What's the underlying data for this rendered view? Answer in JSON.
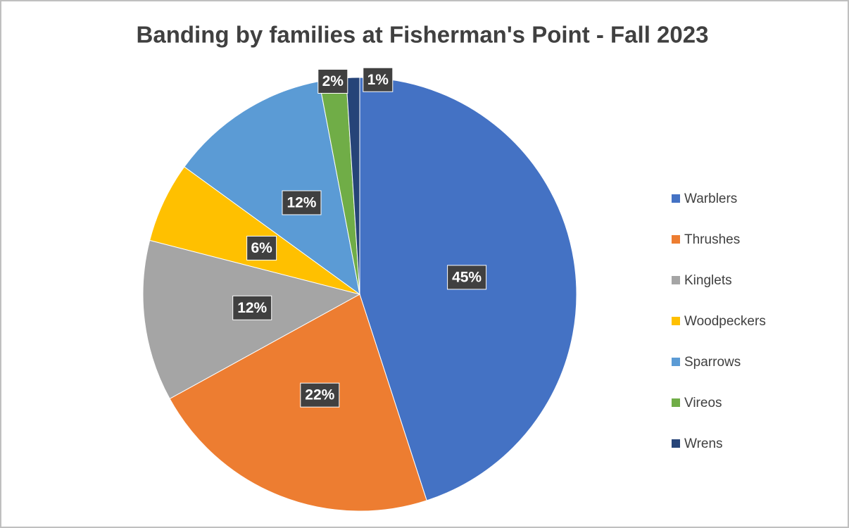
{
  "chart_data": {
    "type": "pie",
    "title": "Banding by families at Fisherman's Point - Fall 2023",
    "categories": [
      "Warblers",
      "Thrushes",
      "Kinglets",
      "Woodpeckers",
      "Sparrows",
      "Vireos",
      "Wrens"
    ],
    "values": [
      45,
      22,
      12,
      6,
      12,
      2,
      1
    ],
    "value_labels": [
      "45%",
      "22%",
      "12%",
      "6%",
      "12%",
      "2%",
      "1%"
    ],
    "colors": [
      "#4472c4",
      "#ed7d31",
      "#a5a5a5",
      "#ffc000",
      "#5b9bd5",
      "#70ad47",
      "#264478"
    ],
    "legend": "right"
  }
}
